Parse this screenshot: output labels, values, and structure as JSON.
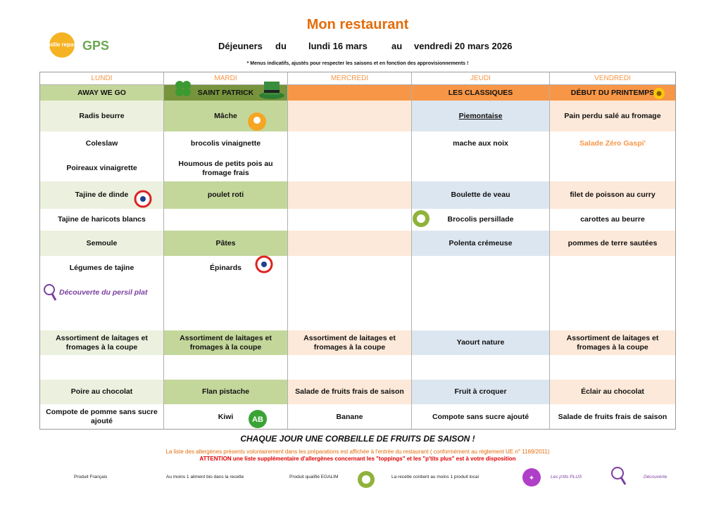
{
  "header": {
    "logo1": "mille repas",
    "logo2": "GPS",
    "title": "Mon restaurant",
    "meal": "Déjeuners",
    "from_word": "du",
    "from_date": "lundi 16 mars",
    "to_word": "au",
    "to_date": "vendredi 20 mars 2026",
    "note": "* Menus indicatifs, ajustés pour respecter les saisons et en fonction des approvisionnements !"
  },
  "table": {
    "days": [
      "LUNDI",
      "MARDI",
      "MERCREDI",
      "JEUDI",
      "VENDREDI"
    ],
    "themes": [
      "AWAY WE GO",
      "SAINT PATRICK",
      null,
      "LES CLASSIQUES",
      "DÉBUT DU PRINTEMPS"
    ],
    "rows": [
      [
        "Radis beurre",
        "Mâche",
        null,
        "Piemontaise",
        "Pain perdu salé au fromage"
      ],
      [
        "Coleslaw",
        "brocolis vinaignette",
        null,
        "mache aux noix",
        "Salade Zéro Gaspi'"
      ],
      [
        "Poireaux vinaigrette",
        "Houmous de petits pois au fromage frais",
        null,
        null,
        null
      ],
      [
        "Tajine de dinde",
        "poulet roti",
        null,
        "Boulette de veau",
        "filet de poisson au curry"
      ],
      [
        "Tajine de haricots blancs",
        null,
        null,
        "Brocolis persillade",
        "carottes au beurre"
      ],
      [
        "Semoule",
        "Pâtes",
        null,
        "Polenta crémeuse",
        "pommes de terre sautées"
      ],
      [
        "Légumes de tajine",
        "Épinards",
        null,
        null,
        null
      ],
      [
        "Découverte du persil plat",
        null,
        null,
        null,
        null
      ],
      [
        "Assortiment de laitages et fromages à la coupe",
        "Assortiment de laitages et fromages à la coupe",
        "Assortiment de laitages et fromages à la coupe",
        "Yaourt nature",
        "Assortiment de laitages et fromages à la coupe"
      ],
      [
        null,
        null,
        null,
        null,
        null
      ],
      [
        "Poire au chocolat",
        "Flan pistache",
        "Salade de fruits frais de saison",
        "Fruit à croquer",
        "Éclair au chocolat"
      ],
      [
        "Compote de pomme sans sucre ajouté",
        "Kiwi",
        "Banane",
        "Compote sans sucre ajouté",
        "Salade de fruits frais de saison"
      ]
    ]
  },
  "footer": {
    "fruits": "CHAQUE JOUR UNE CORBEILLE DE FRUITS DE SAISON !",
    "allergens": "La liste des allergènes présents volontairement dans les préparations est affichée à l'entrée du restaurant ( conformément au règlement UE n° 1169/2011)",
    "attention": "ATTENTION une liste supplémentaire d'allergènes concernant les \"toppings\" et les \"p'tits plus\" est à votre disposition",
    "legend": [
      "Produit Français",
      "Au moins 1 aliment bio dans la recette",
      "Produit qualifié EGALIM",
      "La recette contient au moins 1 produit local",
      "Les p'tits PLUS",
      "Découverte"
    ]
  }
}
